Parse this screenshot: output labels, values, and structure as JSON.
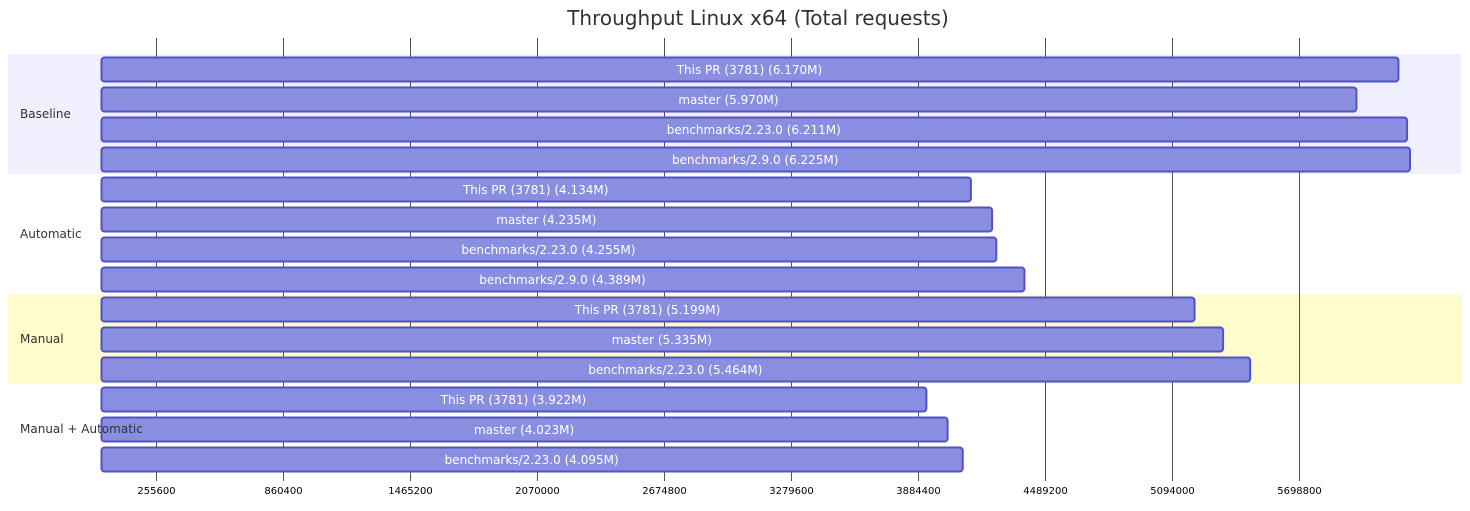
{
  "chart_data": {
    "type": "bar",
    "orientation": "horizontal",
    "title": "Throughput Linux x64 (Total requests)",
    "x_ticks": [
      255600,
      860400,
      1465200,
      2070000,
      2674800,
      3279600,
      3884400,
      4489200,
      5094000,
      5698800
    ],
    "groups": [
      {
        "name": "Baseline",
        "section_color": "#efeffd",
        "bars": [
          {
            "label": "This PR (3781) (6.170M)",
            "value": 6170000
          },
          {
            "label": "master (5.970M)",
            "value": 5970000
          },
          {
            "label": "benchmarks/2.23.0 (6.211M)",
            "value": 6211000
          },
          {
            "label": "benchmarks/2.9.0 (6.225M)",
            "value": 6225000
          }
        ]
      },
      {
        "name": "Automatic",
        "section_color": "#ffffff",
        "bars": [
          {
            "label": "This PR (3781) (4.134M)",
            "value": 4134000
          },
          {
            "label": "master (4.235M)",
            "value": 4235000
          },
          {
            "label": "benchmarks/2.23.0 (4.255M)",
            "value": 4255000
          },
          {
            "label": "benchmarks/2.9.0 (4.389M)",
            "value": 4389000
          }
        ]
      },
      {
        "name": "Manual",
        "section_color": "#fefbcd",
        "bars": [
          {
            "label": "This PR (3781) (5.199M)",
            "value": 5199000
          },
          {
            "label": "master (5.335M)",
            "value": 5335000
          },
          {
            "label": "benchmarks/2.23.0 (5.464M)",
            "value": 5464000
          }
        ]
      },
      {
        "name": "Manual + Automatic",
        "section_color": "#ffffff",
        "bars": [
          {
            "label": "This PR (3781) (3.922M)",
            "value": 3922000
          },
          {
            "label": "master (4.023M)",
            "value": 4023000
          },
          {
            "label": "benchmarks/2.23.0 (4.095M)",
            "value": 4095000
          }
        ]
      }
    ],
    "colors": {
      "bar_fill": "#8a8ee0",
      "bar_stroke": "#5252c4",
      "bar_text": "#ffffff",
      "grid": "#333333",
      "text": "#333333"
    }
  }
}
